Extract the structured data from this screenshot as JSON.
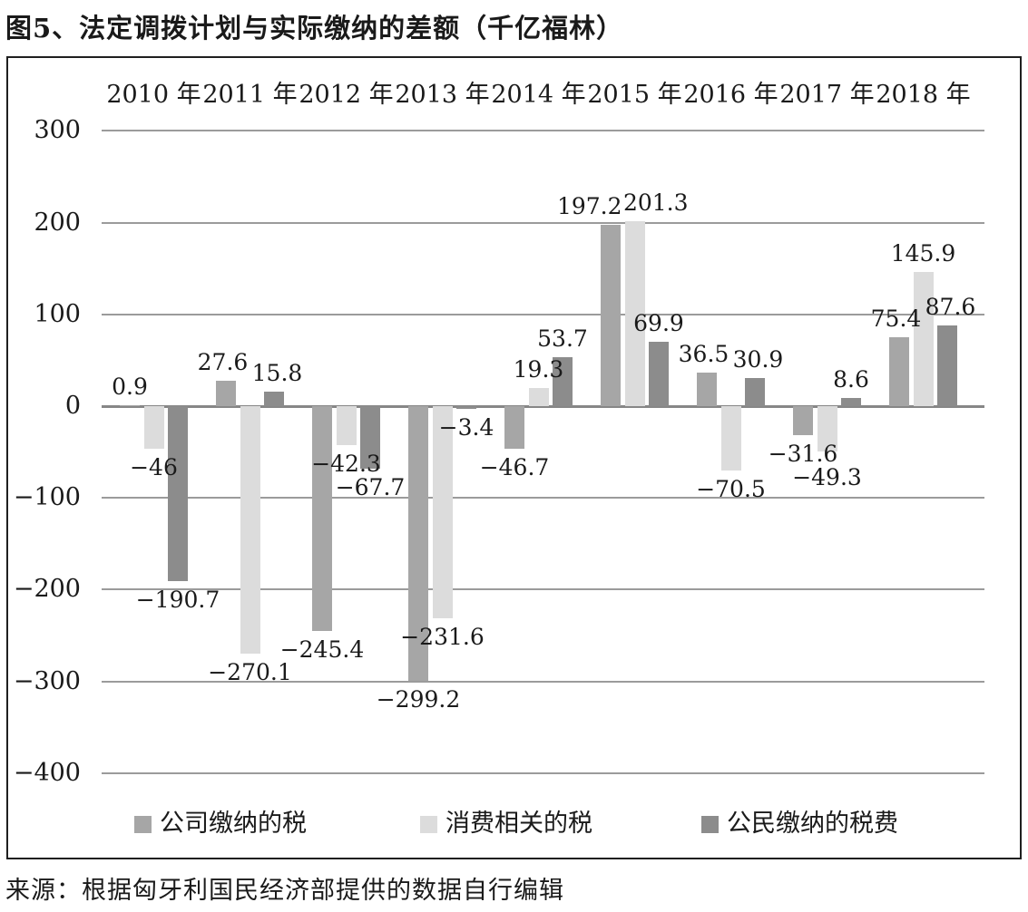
{
  "title": "图5、法定调拨计划与实际缴纳的差额（千亿福林）",
  "source": "来源：根据匈牙利国民经济部提供的数据自行编辑",
  "colors": {
    "grid": "#9b9b9b",
    "zero_axis": "#878787",
    "frame_border": "#1f1f1f",
    "text": "#1a1a1a"
  },
  "chart_data": {
    "type": "bar",
    "categories": [
      "2010 年",
      "2011 年",
      "2012 年",
      "2013 年",
      "2014 年",
      "2015 年",
      "2016 年",
      "2017 年",
      "2018 年"
    ],
    "series": [
      {
        "name": "公司缴纳的税",
        "color": "#a6a6a6",
        "values": [
          0.9,
          27.6,
          -245.4,
          -299.2,
          -46.7,
          197.2,
          36.5,
          -31.6,
          75.4
        ]
      },
      {
        "name": "消费相关的税",
        "color": "#dcdcdc",
        "values": [
          -46,
          -270.1,
          -42.3,
          -231.6,
          19.3,
          201.3,
          -70.5,
          -49.3,
          145.9
        ]
      },
      {
        "name": "公民缴纳的税费",
        "color": "#8c8c8c",
        "values": [
          -190.7,
          15.8,
          -67.7,
          -3.4,
          53.7,
          69.9,
          30.9,
          8.6,
          87.6
        ]
      }
    ],
    "yticks": [
      300,
      200,
      100,
      0,
      -100,
      -200,
      -300,
      -400
    ],
    "ylim": [
      -450,
      320
    ],
    "grid": true,
    "legend_position": "bottom",
    "value_labels": true,
    "category_labels_position": "top"
  }
}
